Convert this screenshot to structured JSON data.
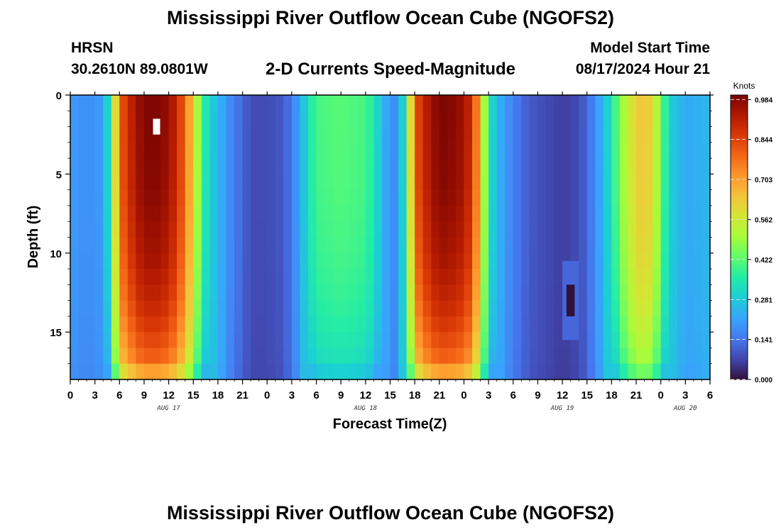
{
  "title": "Mississippi River Outflow Ocean Cube (NGOFS2)",
  "footer_title": "Mississippi River Outflow Ocean Cube (NGOFS2)",
  "station": {
    "name": "HRSN",
    "coords": "30.2610N  89.0801W"
  },
  "subtitle": "2-D Currents Speed-Magnitude",
  "model_start": {
    "label": "Model Start Time",
    "value": "08/17/2024 Hour 21"
  },
  "chart_data": {
    "type": "heatmap",
    "title": "2-D Currents Speed-Magnitude",
    "xlabel": "Forecast Time(Z)",
    "ylabel": "Depth (ft)",
    "x_range_hours": [
      0,
      78
    ],
    "y_range_ft": [
      0,
      18
    ],
    "x_ticks": [
      {
        "hour": 0,
        "label": "0"
      },
      {
        "hour": 3,
        "label": "3"
      },
      {
        "hour": 6,
        "label": "6"
      },
      {
        "hour": 9,
        "label": "9"
      },
      {
        "hour": 12,
        "label": "12"
      },
      {
        "hour": 15,
        "label": "15"
      },
      {
        "hour": 18,
        "label": "18"
      },
      {
        "hour": 21,
        "label": "21"
      },
      {
        "hour": 24,
        "label": "0"
      },
      {
        "hour": 27,
        "label": "3"
      },
      {
        "hour": 30,
        "label": "6"
      },
      {
        "hour": 33,
        "label": "9"
      },
      {
        "hour": 36,
        "label": "12"
      },
      {
        "hour": 39,
        "label": "15"
      },
      {
        "hour": 42,
        "label": "18"
      },
      {
        "hour": 45,
        "label": "21"
      },
      {
        "hour": 48,
        "label": "0"
      },
      {
        "hour": 51,
        "label": "3"
      },
      {
        "hour": 54,
        "label": "6"
      },
      {
        "hour": 57,
        "label": "9"
      },
      {
        "hour": 60,
        "label": "12"
      },
      {
        "hour": 63,
        "label": "15"
      },
      {
        "hour": 66,
        "label": "18"
      },
      {
        "hour": 69,
        "label": "21"
      },
      {
        "hour": 72,
        "label": "0"
      },
      {
        "hour": 75,
        "label": "3"
      },
      {
        "hour": 78,
        "label": "6"
      }
    ],
    "date_labels": [
      {
        "hour": 12,
        "label": "AUG 17"
      },
      {
        "hour": 36,
        "label": "AUG 18"
      },
      {
        "hour": 60,
        "label": "AUG 19"
      },
      {
        "hour": 75,
        "label": "AUG 20"
      }
    ],
    "y_ticks": [
      {
        "depth": 0,
        "label": "0"
      },
      {
        "depth": 5,
        "label": "5"
      },
      {
        "depth": 10,
        "label": "10"
      },
      {
        "depth": 15,
        "label": "15"
      }
    ],
    "colorbar": {
      "unit": "Knots",
      "min": 0.0,
      "max": 1.0,
      "ticks": [
        "0.000",
        "0.141",
        "0.281",
        "0.422",
        "0.562",
        "0.703",
        "0.844",
        "0.984"
      ]
    },
    "time_series_surface_knots": [
      {
        "hour": 0,
        "value": 0.2
      },
      {
        "hour": 2,
        "value": 0.18
      },
      {
        "hour": 4,
        "value": 0.2
      },
      {
        "hour": 5,
        "value": 0.4
      },
      {
        "hour": 6,
        "value": 0.8
      },
      {
        "hour": 7,
        "value": 0.88
      },
      {
        "hour": 8,
        "value": 0.95
      },
      {
        "hour": 9,
        "value": 0.99
      },
      {
        "hour": 10,
        "value": 1.0
      },
      {
        "hour": 11,
        "value": 0.99
      },
      {
        "hour": 12,
        "value": 0.96
      },
      {
        "hour": 13,
        "value": 0.9
      },
      {
        "hour": 14,
        "value": 0.78
      },
      {
        "hour": 15,
        "value": 0.62
      },
      {
        "hour": 16,
        "value": 0.4
      },
      {
        "hour": 17,
        "value": 0.3
      },
      {
        "hour": 18,
        "value": 0.25
      },
      {
        "hour": 19,
        "value": 0.2
      },
      {
        "hour": 20,
        "value": 0.15
      },
      {
        "hour": 21,
        "value": 0.12
      },
      {
        "hour": 22,
        "value": 0.08
      },
      {
        "hour": 24,
        "value": 0.08
      },
      {
        "hour": 26,
        "value": 0.1
      },
      {
        "hour": 27,
        "value": 0.15
      },
      {
        "hour": 28,
        "value": 0.22
      },
      {
        "hour": 29,
        "value": 0.33
      },
      {
        "hour": 30,
        "value": 0.4
      },
      {
        "hour": 33,
        "value": 0.42
      },
      {
        "hour": 36,
        "value": 0.4
      },
      {
        "hour": 37,
        "value": 0.35
      },
      {
        "hour": 38,
        "value": 0.26
      },
      {
        "hour": 39,
        "value": 0.18
      },
      {
        "hour": 40,
        "value": 0.18
      },
      {
        "hour": 41,
        "value": 0.4
      },
      {
        "hour": 42,
        "value": 0.8
      },
      {
        "hour": 43,
        "value": 0.9
      },
      {
        "hour": 45,
        "value": 1.0
      },
      {
        "hour": 47,
        "value": 0.98
      },
      {
        "hour": 48,
        "value": 0.95
      },
      {
        "hour": 49,
        "value": 0.88
      },
      {
        "hour": 50,
        "value": 0.65
      },
      {
        "hour": 51,
        "value": 0.35
      },
      {
        "hour": 52,
        "value": 0.25
      },
      {
        "hour": 53,
        "value": 0.2
      },
      {
        "hour": 54,
        "value": 0.16
      },
      {
        "hour": 56,
        "value": 0.1
      },
      {
        "hour": 58,
        "value": 0.08
      },
      {
        "hour": 60,
        "value": 0.06
      },
      {
        "hour": 62,
        "value": 0.08
      },
      {
        "hour": 63,
        "value": 0.12
      },
      {
        "hour": 64,
        "value": 0.18
      },
      {
        "hour": 65,
        "value": 0.25
      },
      {
        "hour": 66,
        "value": 0.34
      },
      {
        "hour": 67,
        "value": 0.46
      },
      {
        "hour": 68,
        "value": 0.55
      },
      {
        "hour": 69,
        "value": 0.62
      },
      {
        "hour": 70,
        "value": 0.65
      },
      {
        "hour": 71,
        "value": 0.6
      },
      {
        "hour": 72,
        "value": 0.45
      },
      {
        "hour": 73,
        "value": 0.3
      },
      {
        "hour": 75,
        "value": 0.22
      },
      {
        "hour": 78,
        "value": 0.25
      }
    ],
    "depth_profile_factor": [
      {
        "depth": 0,
        "factor": 1.0
      },
      {
        "depth": 6,
        "factor": 0.98
      },
      {
        "depth": 10,
        "factor": 0.93
      },
      {
        "depth": 13,
        "factor": 0.86
      },
      {
        "depth": 15,
        "factor": 0.78
      },
      {
        "depth": 16.5,
        "factor": 0.7
      },
      {
        "depth": 17.5,
        "factor": 0.55
      },
      {
        "depth": 18,
        "factor": 0.45
      }
    ],
    "annotations": [
      {
        "type": "missing-cell",
        "hour": 10,
        "depth": 2.0
      },
      {
        "type": "low-speed-anomaly",
        "hour": 61,
        "depth": 13.0,
        "value": 0.0
      }
    ]
  }
}
